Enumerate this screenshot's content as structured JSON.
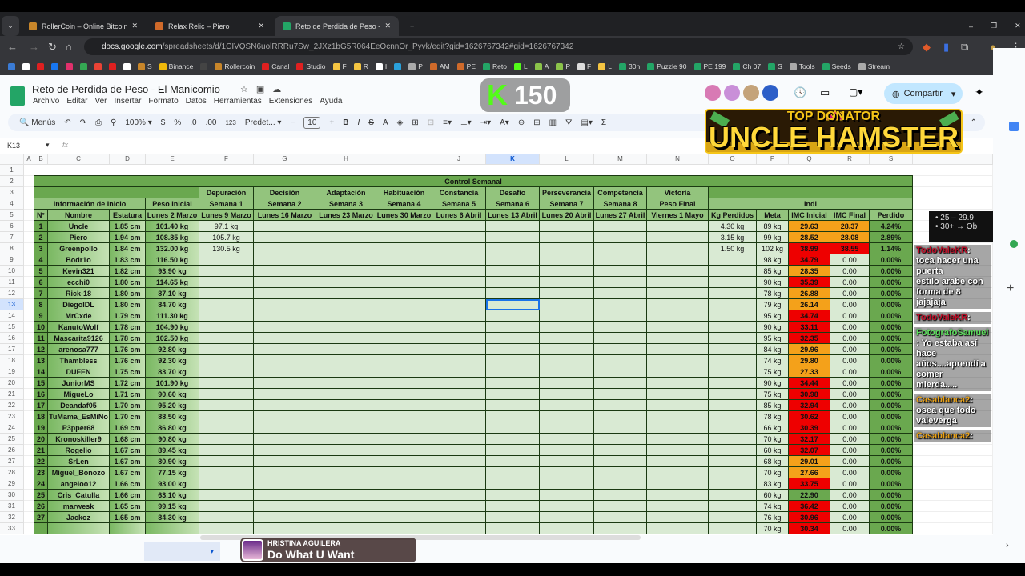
{
  "browser": {
    "tabs": [
      {
        "title": "RollerCoin – Online Bitcoin Min",
        "active": false,
        "color": "#c8862a"
      },
      {
        "title": "Relax Relic – Piero",
        "active": false,
        "color": "#d06a2a"
      },
      {
        "title": "Reto de Perdida de Peso - El M",
        "active": true,
        "color": "#23a566"
      }
    ],
    "url_host": "docs.google.com",
    "url_path": "/spreadsheets/d/1CIVQSN6uolRRRu7Sw_2JXz1bG5R064EeOcnnOr_Pyvk/edit?gid=1626767342#gid=1626767342",
    "bookmarks": [
      "",
      "",
      "",
      "",
      "",
      "",
      "",
      "",
      "",
      "S",
      "Binance",
      "",
      "Rollercoin",
      "Canal",
      "Studio",
      "F",
      "R",
      "I",
      "",
      "P",
      "AM",
      "PE",
      "Reto",
      "L",
      "A",
      "P",
      "F",
      "L",
      "30h",
      "Puzzle 90",
      "PE 199",
      "Ch 07",
      "S",
      "Tools",
      "Seeds",
      "Stream"
    ]
  },
  "doc": {
    "title": "Reto de Perdida de Peso - El Manicomio",
    "menus": [
      "Archivo",
      "Editar",
      "Ver",
      "Insertar",
      "Formato",
      "Datos",
      "Herramientas",
      "Extensiones",
      "Ayuda"
    ],
    "share": "Compartir"
  },
  "toolbar": {
    "search": "Menús",
    "zoom": "100%",
    "currency": "$",
    "percent": "%",
    "dec_minus": ".0",
    "dec_plus": ".00",
    "format": "123",
    "font": "Predet...",
    "font_size": "10",
    "sigma": "Σ"
  },
  "formula_bar": {
    "cell_ref": "K13",
    "fx": "fx"
  },
  "columns": [
    "A",
    "B",
    "C",
    "D",
    "E",
    "F",
    "G",
    "H",
    "I",
    "J",
    "K",
    "L",
    "M",
    "N",
    "O",
    "P",
    "Q",
    "R",
    "S"
  ],
  "selected_column": "K",
  "selected_row": 13,
  "sheet": {
    "title": "Control Semanal",
    "stage_names": [
      "Depuración",
      "Decisión",
      "Adaptación",
      "Habituación",
      "Constancia",
      "Desafío",
      "Perseverancia",
      "Competencia",
      "Victoria"
    ],
    "week_labels": [
      "Semana 1",
      "Semana 2",
      "Semana 3",
      "Semana 4",
      "Semana 5",
      "Semana 6",
      "Semana 7",
      "Semana 8",
      "Peso Final"
    ],
    "dates": [
      "Lunes 9 Marzo",
      "Lunes 16 Marzo",
      "Lunes 23 Marzo",
      "Lunes 30 Marzo",
      "Lunes 6 Abril",
      "Lunes 13 Abril",
      "Lunes 20 Abril",
      "Lunes 27 Abril",
      "Viernes 1 Mayo"
    ],
    "info_header": "Información de Inicio",
    "initial_weight_header": "Peso Inicial",
    "initial_date": "Lunes 2 Marzo",
    "indicators_header": "Indi",
    "col_headers": {
      "n": "N°",
      "name": "Nombre",
      "height": "Estatura",
      "lost": "Kg Perdidos",
      "goal": "Meta",
      "bmi_i": "IMC Inicial",
      "bmi_f": "IMC Final",
      "pct": "Perdido"
    },
    "rows": [
      [
        "1",
        "Uncle",
        "1.85 cm",
        "101.40 kg",
        "97.1 kg",
        "4.30 kg",
        "89 kg",
        "29.63",
        "28.37",
        "4.24%"
      ],
      [
        "2",
        "Piero",
        "1.94 cm",
        "108.85 kg",
        "105.7 kg",
        "3.15 kg",
        "99 kg",
        "28.52",
        "28.08",
        "2.89%"
      ],
      [
        "3",
        "Greenpollo",
        "1.84 cm",
        "132.00 kg",
        "130.5 kg",
        "1.50 kg",
        "102 kg",
        "38.99",
        "38.55",
        "1.14%"
      ],
      [
        "4",
        "Bodr1o",
        "1.83 cm",
        "116.50 kg",
        "",
        "",
        "98 kg",
        "34.79",
        "0.00",
        "0.00%"
      ],
      [
        "5",
        "Kevin321",
        "1.82 cm",
        "93.90 kg",
        "",
        "",
        "85 kg",
        "28.35",
        "0.00",
        "0.00%"
      ],
      [
        "6",
        "ecchi0",
        "1.80 cm",
        "114.65 kg",
        "",
        "",
        "90 kg",
        "35.39",
        "0.00",
        "0.00%"
      ],
      [
        "7",
        "Rick-18",
        "1.80 cm",
        "87.10 kg",
        "",
        "",
        "78 kg",
        "26.88",
        "0.00",
        "0.00%"
      ],
      [
        "8",
        "DiegoIDL",
        "1.80 cm",
        "84.70 kg",
        "",
        "",
        "79 kg",
        "26.14",
        "0.00",
        "0.00%"
      ],
      [
        "9",
        "MrCxde",
        "1.79 cm",
        "111.30 kg",
        "",
        "",
        "95 kg",
        "34.74",
        "0.00",
        "0.00%"
      ],
      [
        "10",
        "KanutoWolf",
        "1.78 cm",
        "104.90 kg",
        "",
        "",
        "90 kg",
        "33.11",
        "0.00",
        "0.00%"
      ],
      [
        "11",
        "Mascarita9126",
        "1.78 cm",
        "102.50 kg",
        "",
        "",
        "95 kg",
        "32.35",
        "0.00",
        "0.00%"
      ],
      [
        "12",
        "arenosa777",
        "1.76 cm",
        "92.80 kg",
        "",
        "",
        "84 kg",
        "29.96",
        "0.00",
        "0.00%"
      ],
      [
        "13",
        "Thambless",
        "1.76 cm",
        "92.30 kg",
        "",
        "",
        "74 kg",
        "29.80",
        "0.00",
        "0.00%"
      ],
      [
        "14",
        "DUFEN",
        "1.75 cm",
        "83.70 kg",
        "",
        "",
        "75 kg",
        "27.33",
        "0.00",
        "0.00%"
      ],
      [
        "15",
        "JuniorMS",
        "1.72 cm",
        "101.90 kg",
        "",
        "",
        "90 kg",
        "34.44",
        "0.00",
        "0.00%"
      ],
      [
        "16",
        "MigueLo",
        "1.71 cm",
        "90.60 kg",
        "",
        "",
        "75 kg",
        "30.98",
        "0.00",
        "0.00%"
      ],
      [
        "17",
        "Deandaf05",
        "1.70 cm",
        "95.20 kg",
        "",
        "",
        "85 kg",
        "32.94",
        "0.00",
        "0.00%"
      ],
      [
        "18",
        "TuMama_EsMiNo",
        "1.70 cm",
        "88.50 kg",
        "",
        "",
        "78 kg",
        "30.62",
        "0.00",
        "0.00%"
      ],
      [
        "19",
        "P3pper68",
        "1.69 cm",
        "86.80 kg",
        "",
        "",
        "66 kg",
        "30.39",
        "0.00",
        "0.00%"
      ],
      [
        "20",
        "Kronoskiller9",
        "1.68 cm",
        "90.80 kg",
        "",
        "",
        "70 kg",
        "32.17",
        "0.00",
        "0.00%"
      ],
      [
        "21",
        "Rogelio",
        "1.67 cm",
        "89.45 kg",
        "",
        "",
        "60 kg",
        "32.07",
        "0.00",
        "0.00%"
      ],
      [
        "22",
        "SrLen",
        "1.67 cm",
        "80.90 kg",
        "",
        "",
        "68 kg",
        "29.01",
        "0.00",
        "0.00%"
      ],
      [
        "23",
        "Miguel_Bonozo",
        "1.67 cm",
        "77.15 kg",
        "",
        "",
        "70 kg",
        "27.66",
        "0.00",
        "0.00%"
      ],
      [
        "24",
        "angeloo12",
        "1.66 cm",
        "93.00 kg",
        "",
        "",
        "83 kg",
        "33.75",
        "0.00",
        "0.00%"
      ],
      [
        "25",
        "Cris_Catulla",
        "1.66 cm",
        "63.10 kg",
        "",
        "",
        "60 kg",
        "22.90",
        "0.00",
        "0.00%"
      ],
      [
        "26",
        "marwesk",
        "1.65 cm",
        "99.15 kg",
        "",
        "",
        "74 kg",
        "36.42",
        "0.00",
        "0.00%"
      ],
      [
        "27",
        "Jackoz",
        "1.65 cm",
        "84.30 kg",
        "",
        "",
        "76 kg",
        "30.96",
        "0.00",
        "0.00%"
      ],
      [
        "",
        "",
        "",
        "",
        "",
        "",
        "70 kg",
        "30.34",
        "0.00",
        "0.00%"
      ]
    ],
    "legend": [
      "25 – 29.9",
      "30+ → Ob"
    ],
    "bmi_colors": {
      "obese": "#e00000",
      "overweight": "#f4a11a",
      "normal": "#6aa84f"
    }
  },
  "overlays": {
    "badge": "150",
    "banner_top": "TOP DONATOR",
    "banner_name": "UNCLE HAMSTER",
    "chat": [
      {
        "user": "TodoValeKR",
        "text": ": toca hacer una puerta",
        "cont": "estilo arabe con forma de 8 jajajaja",
        "color": "#c0102a"
      },
      {
        "user": "TodoValeKR",
        "text": ":",
        "cont": "",
        "color": "#c0102a"
      },
      {
        "user": "FotografoSamuel",
        "text": ": Yo estaba así",
        "cont": "hace años....aprendí a comer",
        "cont2": "mierda.....",
        "color": "#5ee05e"
      },
      {
        "user": "Casablanca2",
        "text": ": osea que todo",
        "cont": "valeverga",
        "color": "#e8a21a"
      },
      {
        "user": "Casablanca2",
        "text": ":",
        "cont": "",
        "color": "#e8a21a"
      }
    ],
    "music_artist": "HRISTINA AGUILERA",
    "music_title": "Do What U Want"
  }
}
